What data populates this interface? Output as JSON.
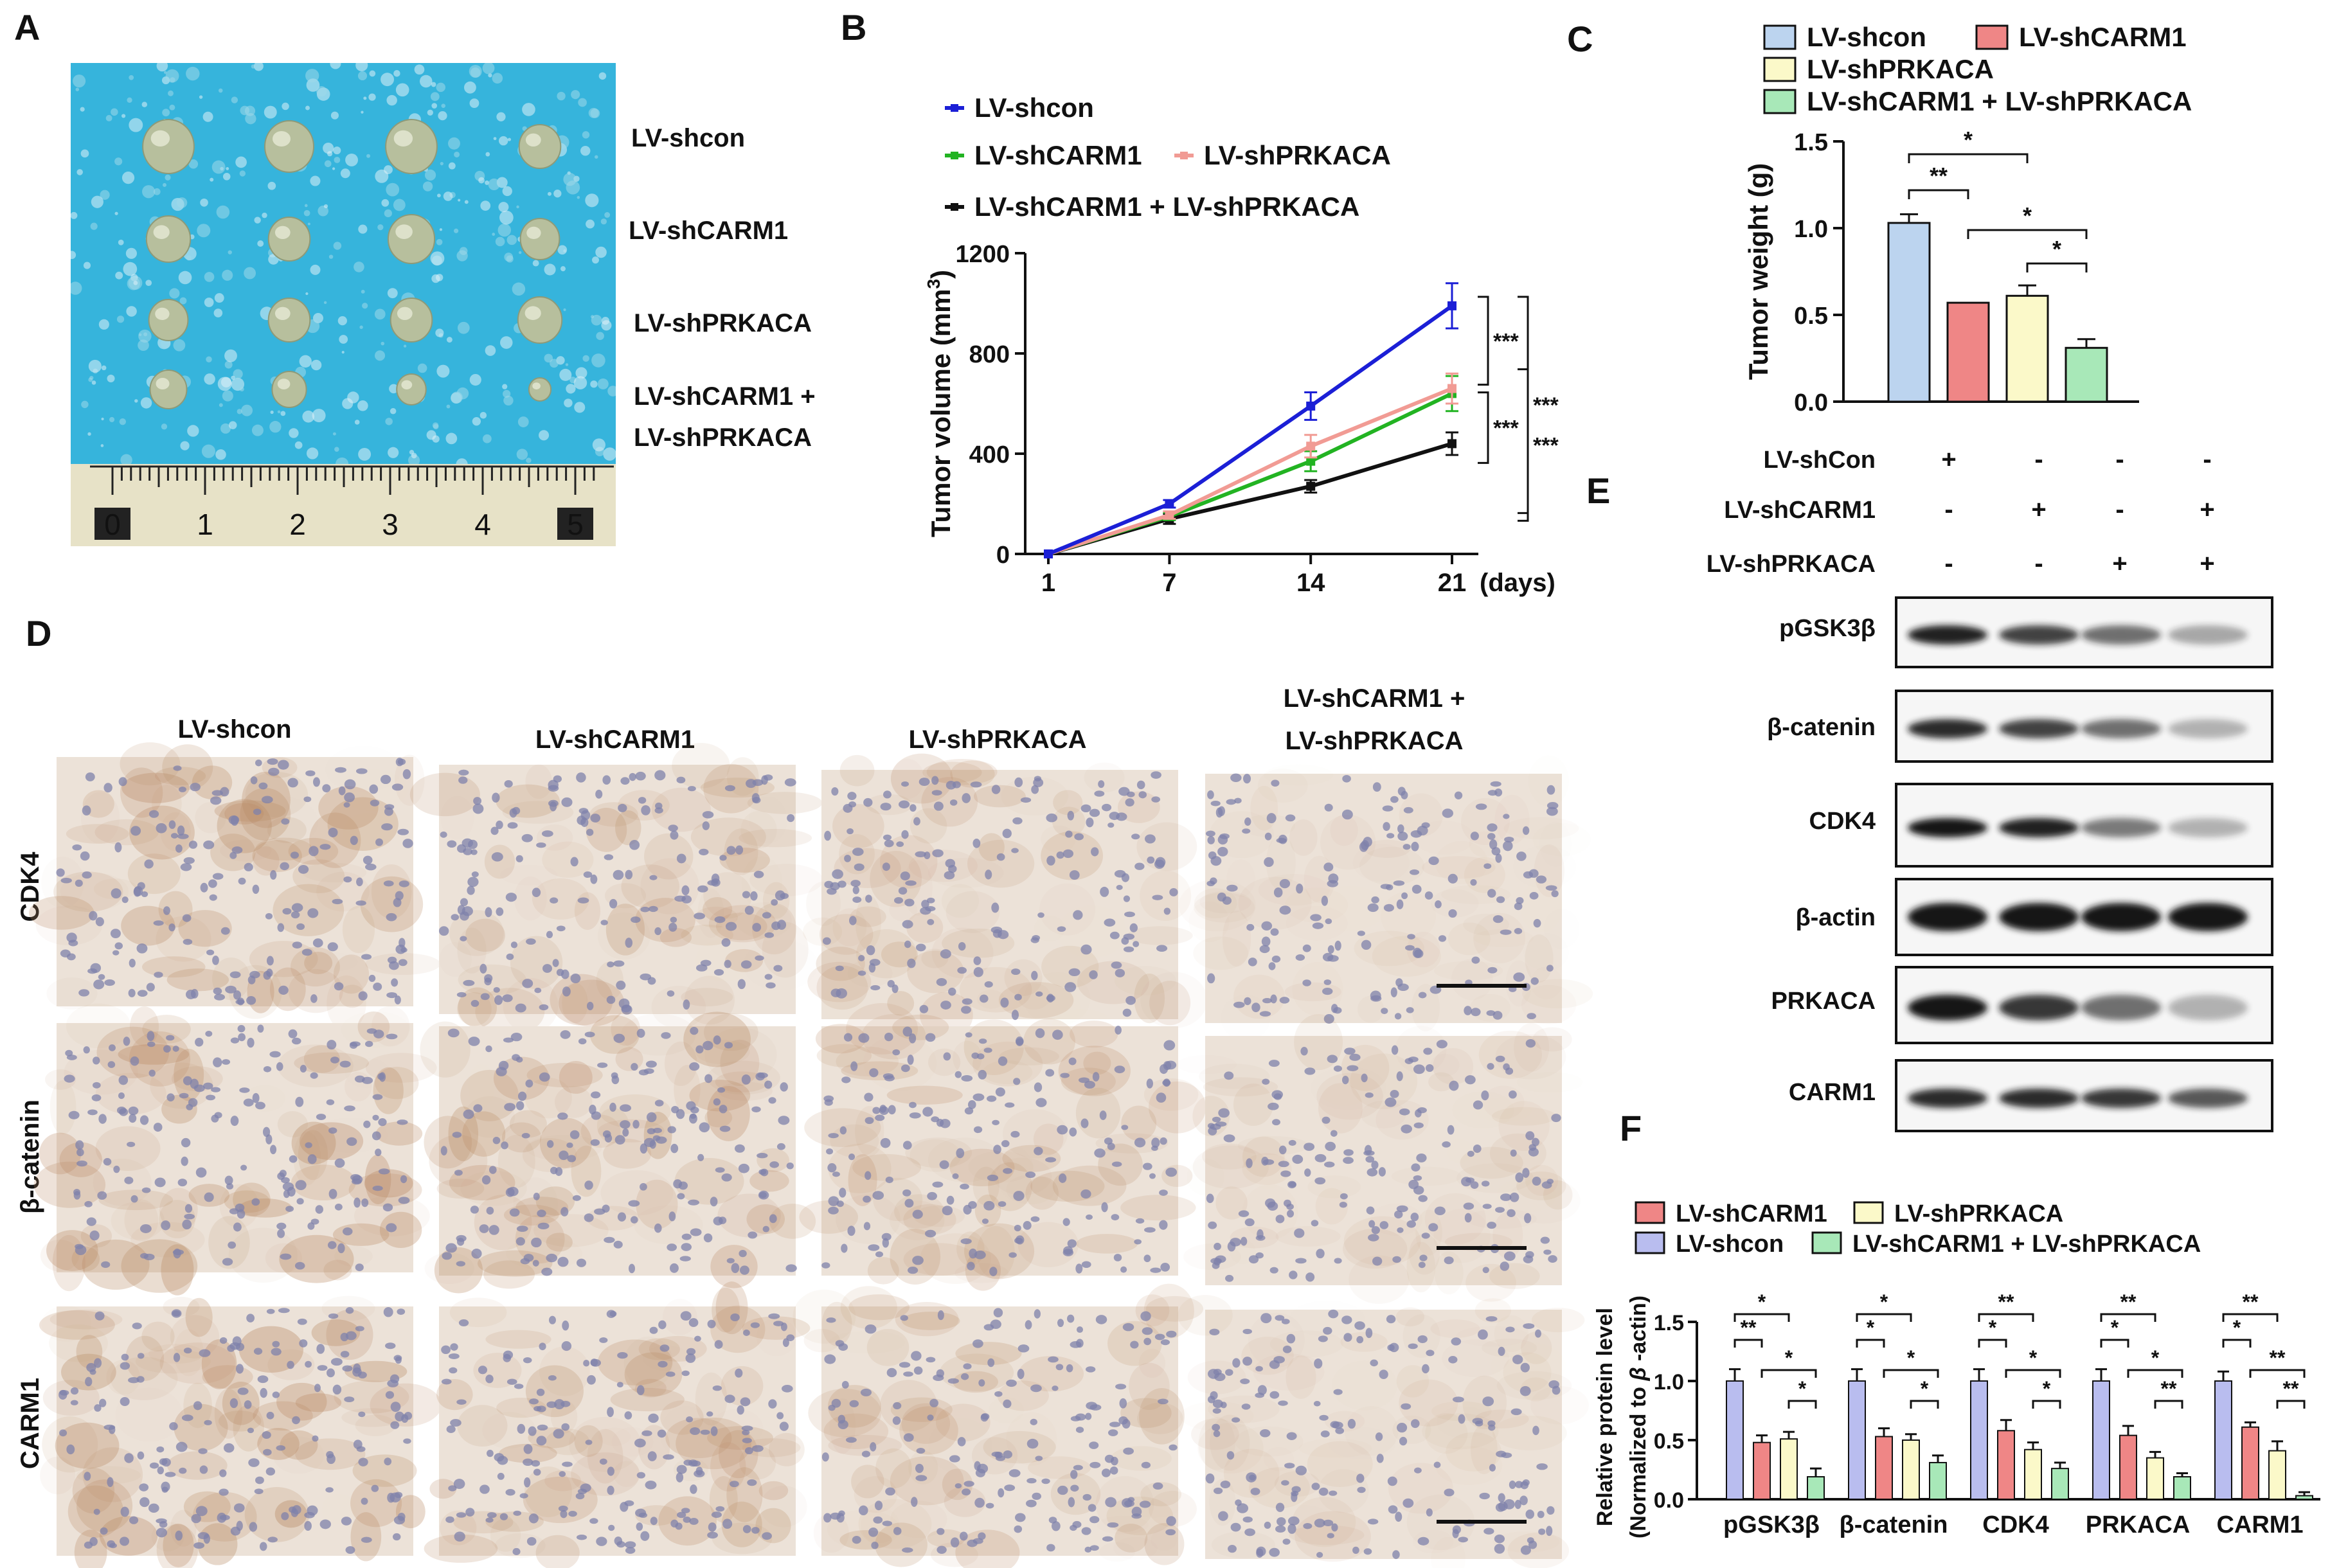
{
  "panel_letters": {
    "A": "A",
    "B": "B",
    "C": "C",
    "D": "D",
    "E": "E",
    "F": "F"
  },
  "panel_a": {
    "row_labels": [
      "LV-shcon",
      "LV-shCARM1",
      "LV-shPRKACA",
      "LV-shCARM1 +",
      "LV-shPRKACA"
    ],
    "ruler_numbers": [
      "0",
      "1",
      "2",
      "3",
      "4",
      "5"
    ],
    "colors": {
      "background": "#36b4dc",
      "tumor": "#b7bf9d",
      "ruler": "#e7e2c7"
    }
  },
  "panel_d": {
    "column_labels": [
      "LV-shcon",
      "LV-shCARM1",
      "LV-shPRKACA",
      "LV-shCARM1 +",
      "LV-shPRKACA"
    ],
    "row_labels": [
      "CDK4",
      "β-catenin",
      "CARM1"
    ],
    "colors": {
      "tissue": "#ece2d8",
      "nuclei": "#7f81ab",
      "stain": "#b98a64"
    }
  },
  "panel_e": {
    "conditions": [
      {
        "label": "LV-shCon",
        "signs": [
          "+",
          "-",
          "-",
          "-"
        ]
      },
      {
        "label": "LV-shCARM1",
        "signs": [
          "-",
          "+",
          "-",
          "+"
        ]
      },
      {
        "label": "LV-shPRKACA",
        "signs": [
          "-",
          "-",
          "+",
          "+"
        ]
      }
    ],
    "proteins": [
      "pGSK3β",
      "β-catenin",
      "CDK4",
      "β-actin",
      "PRKACA",
      "CARM1"
    ],
    "band_intensity": [
      [
        0.95,
        0.8,
        0.6,
        0.35
      ],
      [
        0.9,
        0.8,
        0.6,
        0.3
      ],
      [
        1.0,
        0.95,
        0.55,
        0.3
      ],
      [
        1.0,
        1.0,
        1.0,
        1.0
      ],
      [
        1.0,
        0.85,
        0.6,
        0.3
      ],
      [
        0.9,
        0.9,
        0.85,
        0.7
      ]
    ]
  },
  "chart_data": [
    {
      "id": "B",
      "type": "line",
      "x": [
        1,
        7,
        14,
        21
      ],
      "x_tick_labels": [
        "1",
        "7",
        "14",
        "21"
      ],
      "x_unit": "(days)",
      "ylabel": "Tumor volume (mm",
      "ylabel_sup": "3",
      "ylabel_close": ")",
      "ylim": [
        0,
        1200
      ],
      "y_ticks": [
        0,
        400,
        800,
        1200
      ],
      "legend": "top",
      "series": [
        {
          "name": "LV-shcon",
          "color": "#1b1fd6",
          "marker": "square",
          "values": [
            0,
            200,
            590,
            990
          ],
          "errors": [
            0,
            15,
            55,
            90
          ]
        },
        {
          "name": "LV-shCARM1",
          "color": "#22b322",
          "marker": "triangle",
          "values": [
            0,
            150,
            370,
            640
          ],
          "errors": [
            0,
            15,
            40,
            70
          ]
        },
        {
          "name": "LV-shPRKACA",
          "color": "#f19b94",
          "marker": "diamond",
          "values": [
            0,
            155,
            430,
            660
          ],
          "errors": [
            0,
            15,
            45,
            60
          ]
        },
        {
          "name": "LV-shCARM1 + LV-shPRKACA",
          "color": "#111111",
          "marker": "circle",
          "values": [
            0,
            140,
            270,
            440
          ],
          "errors": [
            0,
            20,
            25,
            45
          ]
        }
      ],
      "significance": [
        "***",
        "***",
        "***",
        "***"
      ]
    },
    {
      "id": "C",
      "type": "bar",
      "categories": [
        "LV-shcon",
        "LV-shCARM1",
        "LV-shPRKACA",
        "LV-shCARM1 + LV-shPRKACA"
      ],
      "values": [
        1.03,
        0.57,
        0.61,
        0.31
      ],
      "errors": [
        0.05,
        0.0,
        0.06,
        0.05
      ],
      "colors": [
        "#bcd4ef",
        "#ef8686",
        "#fbf9c9",
        "#a8e8b8"
      ],
      "ylabel": "Tumor weight (g)",
      "ylim": [
        0,
        1.5
      ],
      "y_ticks": [
        "0.0",
        "0.5",
        "1.0",
        "1.5"
      ],
      "legend": "top",
      "significance": [
        {
          "from": 0,
          "to": 1,
          "label": "**"
        },
        {
          "from": 0,
          "to": 2,
          "label": "*"
        },
        {
          "from": 1,
          "to": 3,
          "label": "*"
        },
        {
          "from": 2,
          "to": 3,
          "label": "*"
        }
      ]
    },
    {
      "id": "F",
      "type": "bar",
      "categories": [
        "pGSK3β",
        "β-catenin",
        "CDK4",
        "PRKACA",
        "CARM1"
      ],
      "ylabel": "Relative protein level",
      "ylabel2_a": "(Normalized to ",
      "ylabel2_b": "β",
      "ylabel2_c": " -actin)",
      "ylim": [
        0,
        1.5
      ],
      "y_ticks": [
        "0.0",
        "0.5",
        "1.0",
        "1.5"
      ],
      "legend": "top",
      "series": [
        {
          "name": "LV-shcon",
          "color": "#b9bdef",
          "values": [
            1.0,
            1.0,
            1.0,
            1.0,
            1.0
          ],
          "errors": [
            0.1,
            0.1,
            0.1,
            0.1,
            0.08
          ]
        },
        {
          "name": "LV-shCARM1",
          "color": "#ef8686",
          "values": [
            0.48,
            0.53,
            0.58,
            0.54,
            0.61
          ],
          "errors": [
            0.06,
            0.07,
            0.09,
            0.08,
            0.04
          ]
        },
        {
          "name": "LV-shPRKACA",
          "color": "#fbf9c9",
          "values": [
            0.51,
            0.5,
            0.42,
            0.35,
            0.41
          ],
          "errors": [
            0.06,
            0.05,
            0.06,
            0.05,
            0.08
          ]
        },
        {
          "name": "LV-shCARM1 + LV-shPRKACA",
          "color": "#a8e8b8",
          "values": [
            0.19,
            0.31,
            0.26,
            0.19,
            0.03
          ],
          "errors": [
            0.07,
            0.06,
            0.05,
            0.03,
            0.03
          ]
        }
      ],
      "significance": [
        {
          "inner": "**",
          "outer": "*",
          "mid": "*",
          "low": "*"
        },
        {
          "inner": "*",
          "outer": "*",
          "mid": "*",
          "low": "*"
        },
        {
          "inner": "*",
          "outer": "**",
          "mid": "*",
          "low": "*"
        },
        {
          "inner": "*",
          "outer": "**",
          "mid": "*",
          "low": "**"
        },
        {
          "inner": "*",
          "outer": "**",
          "mid": "**",
          "low": "**"
        }
      ]
    }
  ]
}
